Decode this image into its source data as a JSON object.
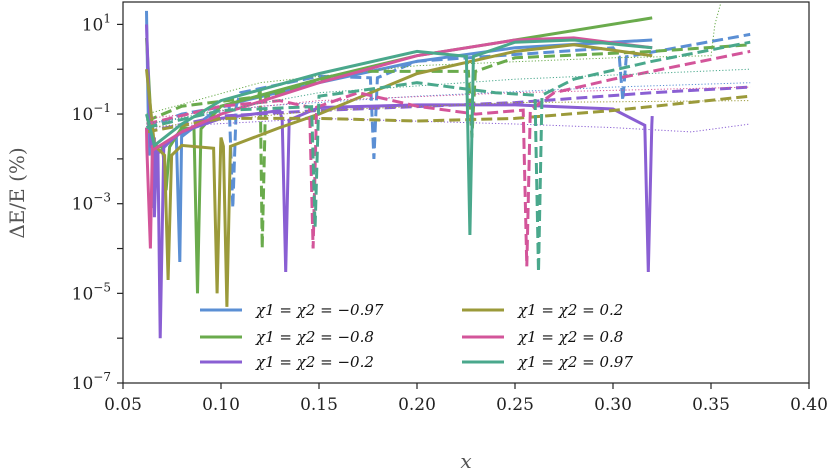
{
  "chart_data": {
    "type": "line",
    "xlabel": "x",
    "ylabel": "ΔE/E (%)",
    "xlim": [
      0.05,
      0.4
    ],
    "ylim_log10": [
      -7,
      1.5
    ],
    "log_scale_y": true,
    "grid": false,
    "legend_position": "lower-left",
    "x_ticks": [
      {
        "value": 0.05,
        "label": "0.05"
      },
      {
        "value": 0.1,
        "label": "0.10"
      },
      {
        "value": 0.15,
        "label": "0.15"
      },
      {
        "value": 0.2,
        "label": "0.20"
      },
      {
        "value": 0.25,
        "label": "0.25"
      },
      {
        "value": 0.3,
        "label": "0.30"
      },
      {
        "value": 0.35,
        "label": "0.35"
      },
      {
        "value": 0.4,
        "label": "0.40"
      }
    ],
    "y_ticks": [
      {
        "exp": 1,
        "base": "10",
        "sup": "1"
      },
      {
        "exp": -1,
        "base": "10",
        "sup": "−1"
      },
      {
        "exp": -3,
        "base": "10",
        "sup": "−3"
      },
      {
        "exp": -5,
        "base": "10",
        "sup": "−5"
      },
      {
        "exp": -7,
        "base": "10",
        "sup": "−7"
      }
    ],
    "series": [
      {
        "name": "χ1 = χ2 = −0.97",
        "color": "#5b8fd4",
        "solid": [
          [
            0.062,
            20
          ],
          [
            0.065,
            0.02
          ],
          [
            0.08,
            0.06
          ],
          [
            0.1,
            0.15
          ],
          [
            0.15,
            0.5
          ],
          [
            0.2,
            1.5
          ],
          [
            0.25,
            3
          ],
          [
            0.32,
            4.5
          ]
        ],
        "solid_dips": [
          {
            "x": 0.065,
            "y": 0.0008
          },
          {
            "x": 0.079,
            "y": 5e-05
          }
        ],
        "dashed": [
          [
            0.062,
            0.05
          ],
          [
            0.08,
            0.1
          ],
          [
            0.11,
            0.3
          ],
          [
            0.15,
            0.7
          ],
          [
            0.2,
            1.5
          ],
          [
            0.3,
            3
          ],
          [
            0.37,
            6
          ]
        ],
        "dashed_dips": [
          {
            "x": 0.106,
            "y": 0.0008
          },
          {
            "x": 0.178,
            "y": 0.01
          },
          {
            "x": 0.305,
            "y": 0.2
          }
        ],
        "dotted": [
          [
            0.062,
            0.06
          ],
          [
            0.12,
            0.15
          ],
          [
            0.2,
            0.25
          ],
          [
            0.3,
            0.4
          ],
          [
            0.37,
            0.5
          ]
        ]
      },
      {
        "name": "χ1 = χ2 = −0.8",
        "color": "#6aab4c",
        "solid": [
          [
            0.062,
            5
          ],
          [
            0.065,
            0.02
          ],
          [
            0.08,
            0.05
          ],
          [
            0.1,
            0.15
          ],
          [
            0.15,
            0.6
          ],
          [
            0.2,
            2
          ],
          [
            0.25,
            4.5
          ],
          [
            0.32,
            14
          ]
        ],
        "solid_dips": [
          {
            "x": 0.072,
            "y": 0.002
          },
          {
            "x": 0.088,
            "y": 1e-05
          }
        ],
        "dashed": [
          [
            0.062,
            0.07
          ],
          [
            0.08,
            0.15
          ],
          [
            0.12,
            0.4
          ],
          [
            0.17,
            0.9
          ],
          [
            0.25,
            1.8
          ],
          [
            0.32,
            2.5
          ],
          [
            0.37,
            3.5
          ]
        ],
        "dashed_dips": [
          {
            "x": 0.121,
            "y": 0.0001
          },
          {
            "x": 0.228,
            "y": 0.03
          }
        ],
        "dotted": [
          [
            0.062,
            0.1
          ],
          [
            0.12,
            0.5
          ],
          [
            0.2,
            1.2
          ],
          [
            0.3,
            1.8
          ],
          [
            0.35,
            2
          ],
          [
            0.352,
            10
          ],
          [
            0.355,
            30
          ]
        ]
      },
      {
        "name": "χ1 = χ2 = −0.2",
        "color": "#8a5fd3",
        "solid": [
          [
            0.062,
            10
          ],
          [
            0.066,
            0.03
          ],
          [
            0.08,
            0.04
          ],
          [
            0.1,
            0.08
          ],
          [
            0.13,
            0.12
          ],
          [
            0.15,
            0.14
          ],
          [
            0.2,
            0.16
          ],
          [
            0.25,
            0.16
          ],
          [
            0.3,
            0.13
          ],
          [
            0.32,
            0.09
          ]
        ],
        "solid_dips": [
          {
            "x": 0.066,
            "y": 0.0005
          },
          {
            "x": 0.069,
            "y": 1e-06
          },
          {
            "x": 0.133,
            "y": 3e-05
          },
          {
            "x": 0.318,
            "y": 3e-05
          }
        ],
        "dashed": [
          [
            0.062,
            0.04
          ],
          [
            0.1,
            0.09
          ],
          [
            0.15,
            0.12
          ],
          [
            0.25,
            0.18
          ],
          [
            0.32,
            0.3
          ],
          [
            0.37,
            0.4
          ]
        ],
        "dashed_dips": [],
        "dotted": [
          [
            0.062,
            0.05
          ],
          [
            0.15,
            0.08
          ],
          [
            0.25,
            0.06
          ],
          [
            0.3,
            0.05
          ],
          [
            0.34,
            0.04
          ],
          [
            0.37,
            0.06
          ]
        ]
      },
      {
        "name": "χ1 = χ2 = 0.2",
        "color": "#9b9a3a",
        "solid": [
          [
            0.062,
            1
          ],
          [
            0.066,
            0.02
          ],
          [
            0.08,
            0.02
          ],
          [
            0.1,
            0.03
          ],
          [
            0.13,
            0.05
          ],
          [
            0.15,
            0.1
          ],
          [
            0.2,
            0.8
          ],
          [
            0.25,
            2.5
          ],
          [
            0.28,
            3.5
          ],
          [
            0.32,
            2
          ]
        ],
        "solid_dips": [
          {
            "x": 0.073,
            "y": 2e-05
          },
          {
            "x": 0.098,
            "y": 1e-05
          },
          {
            "x": 0.103,
            "y": 5e-06
          }
        ],
        "dashed": [
          [
            0.062,
            0.04
          ],
          [
            0.1,
            0.08
          ],
          [
            0.15,
            0.08
          ],
          [
            0.2,
            0.07
          ],
          [
            0.25,
            0.08
          ],
          [
            0.3,
            0.12
          ],
          [
            0.37,
            0.25
          ]
        ],
        "dashed_dips": [],
        "dotted": [
          [
            0.062,
            0.05
          ],
          [
            0.15,
            0.12
          ],
          [
            0.25,
            0.18
          ],
          [
            0.37,
            0.2
          ]
        ]
      },
      {
        "name": "χ1 = χ2 = 0.8",
        "color": "#d3559a",
        "solid": [
          [
            0.062,
            0.05
          ],
          [
            0.065,
            0.02
          ],
          [
            0.08,
            0.04
          ],
          [
            0.1,
            0.1
          ],
          [
            0.15,
            0.5
          ],
          [
            0.2,
            2
          ],
          [
            0.25,
            4.5
          ],
          [
            0.28,
            5
          ],
          [
            0.32,
            3
          ]
        ],
        "solid_dips": [
          {
            "x": 0.064,
            "y": 0.0001
          }
        ],
        "dashed": [
          [
            0.062,
            0.06
          ],
          [
            0.1,
            0.15
          ],
          [
            0.13,
            0.2
          ],
          [
            0.17,
            0.3
          ],
          [
            0.2,
            0.15
          ],
          [
            0.23,
            0.1
          ],
          [
            0.27,
            0.3
          ],
          [
            0.3,
            0.6
          ],
          [
            0.37,
            2.5
          ]
        ],
        "dashed_dips": [
          {
            "x": 0.147,
            "y": 0.0001
          },
          {
            "x": 0.256,
            "y": 4e-05
          }
        ],
        "dotted": [
          [
            0.062,
            0.08
          ],
          [
            0.15,
            0.2
          ],
          [
            0.25,
            0.3
          ],
          [
            0.37,
            0.4
          ]
        ]
      },
      {
        "name": "χ1 = χ2 = 0.97",
        "color": "#4aa88c",
        "solid": [
          [
            0.062,
            0.1
          ],
          [
            0.066,
            0.02
          ],
          [
            0.08,
            0.06
          ],
          [
            0.1,
            0.2
          ],
          [
            0.15,
            0.8
          ],
          [
            0.2,
            2.5
          ],
          [
            0.25,
            4
          ],
          [
            0.28,
            4.5
          ],
          [
            0.32,
            3
          ]
        ],
        "solid_dips": [
          {
            "x": 0.227,
            "y": 0.0002
          }
        ],
        "dashed": [
          [
            0.062,
            0.05
          ],
          [
            0.1,
            0.12
          ],
          [
            0.15,
            0.25
          ],
          [
            0.2,
            0.5
          ],
          [
            0.24,
            0.3
          ],
          [
            0.28,
            0.6
          ],
          [
            0.32,
            1.5
          ],
          [
            0.37,
            4
          ]
        ],
        "dashed_dips": [
          {
            "x": 0.148,
            "y": 0.0003
          },
          {
            "x": 0.262,
            "y": 3e-05
          }
        ],
        "dotted": [
          [
            0.062,
            0.06
          ],
          [
            0.15,
            0.3
          ],
          [
            0.25,
            0.6
          ],
          [
            0.37,
            1
          ]
        ]
      }
    ]
  }
}
